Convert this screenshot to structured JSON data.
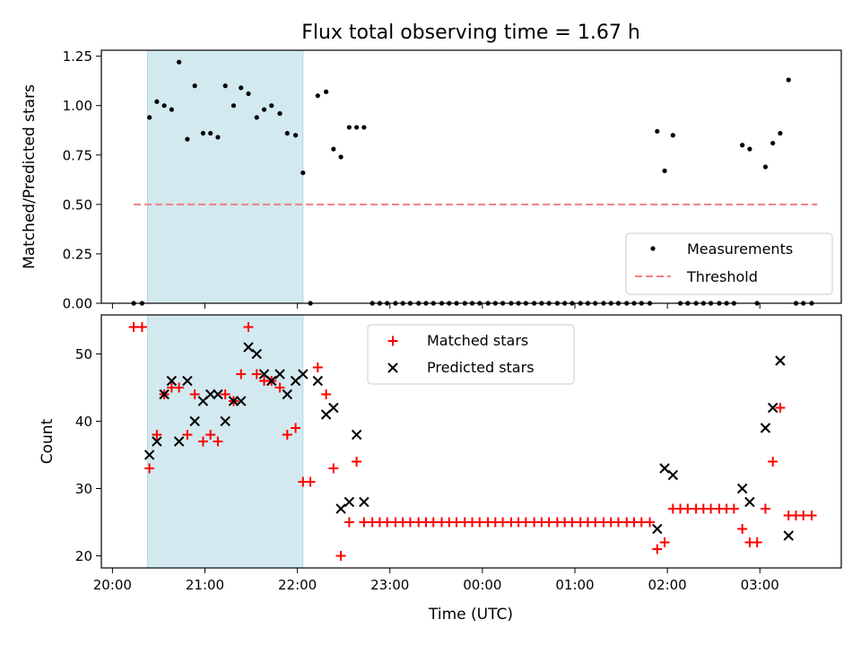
{
  "chart_data": [
    {
      "type": "scatter",
      "title": "Flux total observing time = 1.67 h",
      "ylabel": "Matched/Predicted stars",
      "xlabel": "",
      "xlim": [
        -0.12,
        7.88
      ],
      "ylim": [
        0,
        1.28
      ],
      "yticks": [
        0,
        0.25,
        0.5,
        0.75,
        1.0,
        1.25
      ],
      "ytick_labels": [
        "0.00",
        "0.25",
        "0.50",
        "0.75",
        "1.00",
        "1.25"
      ],
      "shaded_span": [
        0.38,
        2.06
      ],
      "shaded_color": "#d3e9f0",
      "threshold": {
        "name": "Threshold",
        "y": 0.5,
        "x": [
          0.23,
          7.62
        ],
        "color": "#f08080"
      },
      "legend": {
        "placement": "bottom-right",
        "entries": [
          "Measurements",
          "Threshold"
        ]
      },
      "series": [
        {
          "name": "Measurements",
          "color": "#000000",
          "points": [
            [
              0.23,
              0
            ],
            [
              0.32,
              0
            ],
            [
              0.4,
              0.94
            ],
            [
              0.48,
              1.02
            ],
            [
              0.56,
              1.0
            ],
            [
              0.64,
              0.98
            ],
            [
              0.72,
              1.22
            ],
            [
              0.81,
              0.83
            ],
            [
              0.89,
              1.1
            ],
            [
              0.98,
              0.86
            ],
            [
              1.06,
              0.86
            ],
            [
              1.14,
              0.84
            ],
            [
              1.22,
              1.1
            ],
            [
              1.31,
              1.0
            ],
            [
              1.39,
              1.09
            ],
            [
              1.47,
              1.06
            ],
            [
              1.56,
              0.94
            ],
            [
              1.64,
              0.98
            ],
            [
              1.72,
              1.0
            ],
            [
              1.81,
              0.96
            ],
            [
              1.89,
              0.86
            ],
            [
              1.98,
              0.85
            ],
            [
              2.06,
              0.66
            ],
            [
              2.14,
              0
            ],
            [
              2.22,
              1.05
            ],
            [
              2.31,
              1.07
            ],
            [
              2.39,
              0.78
            ],
            [
              2.47,
              0.74
            ],
            [
              2.56,
              0.89
            ],
            [
              2.64,
              0.89
            ],
            [
              2.72,
              0.89
            ],
            [
              2.81,
              0
            ],
            [
              2.89,
              0
            ],
            [
              2.97,
              0
            ],
            [
              3.06,
              0
            ],
            [
              3.14,
              0
            ],
            [
              3.22,
              0
            ],
            [
              3.31,
              0
            ],
            [
              3.39,
              0
            ],
            [
              3.47,
              0
            ],
            [
              3.56,
              0
            ],
            [
              3.64,
              0
            ],
            [
              3.72,
              0
            ],
            [
              3.81,
              0
            ],
            [
              3.89,
              0
            ],
            [
              3.97,
              0
            ],
            [
              4.06,
              0
            ],
            [
              4.14,
              0
            ],
            [
              4.22,
              0
            ],
            [
              4.31,
              0
            ],
            [
              4.39,
              0
            ],
            [
              4.47,
              0
            ],
            [
              4.56,
              0
            ],
            [
              4.64,
              0
            ],
            [
              4.72,
              0
            ],
            [
              4.81,
              0
            ],
            [
              4.89,
              0
            ],
            [
              4.97,
              0
            ],
            [
              5.06,
              0
            ],
            [
              5.14,
              0
            ],
            [
              5.22,
              0
            ],
            [
              5.31,
              0
            ],
            [
              5.39,
              0
            ],
            [
              5.47,
              0
            ],
            [
              5.56,
              0
            ],
            [
              5.64,
              0
            ],
            [
              5.72,
              0
            ],
            [
              5.81,
              0
            ],
            [
              5.89,
              0.87
            ],
            [
              5.97,
              0.67
            ],
            [
              6.06,
              0.85
            ],
            [
              6.14,
              0
            ],
            [
              6.22,
              0
            ],
            [
              6.31,
              0
            ],
            [
              6.39,
              0
            ],
            [
              6.47,
              0
            ],
            [
              6.56,
              0
            ],
            [
              6.64,
              0
            ],
            [
              6.72,
              0
            ],
            [
              6.81,
              0.8
            ],
            [
              6.89,
              0.78
            ],
            [
              6.97,
              0
            ],
            [
              7.06,
              0.69
            ],
            [
              7.14,
              0.81
            ],
            [
              7.22,
              0.86
            ],
            [
              7.31,
              1.13
            ],
            [
              7.39,
              0
            ],
            [
              7.47,
              0
            ],
            [
              7.56,
              0
            ]
          ]
        }
      ]
    },
    {
      "type": "scatter",
      "title": "",
      "ylabel": "Count",
      "xlabel": "Time (UTC)",
      "xlim": [
        -0.12,
        7.88
      ],
      "ylim": [
        18.2,
        55.8
      ],
      "yticks": [
        20,
        30,
        40,
        50
      ],
      "ytick_labels": [
        "20",
        "30",
        "40",
        "50"
      ],
      "xticks": [
        0,
        1,
        2,
        3,
        4,
        5,
        6,
        7
      ],
      "xtick_labels": [
        "20:00",
        "21:00",
        "22:00",
        "23:00",
        "00:00",
        "01:00",
        "02:00",
        "03:00"
      ],
      "shaded_span": [
        0.38,
        2.06
      ],
      "shaded_color": "#d3e9f0",
      "legend": {
        "placement": "top-center",
        "entries": [
          "Matched stars",
          "Predicted stars"
        ]
      },
      "series": [
        {
          "name": "Matched stars",
          "marker": "+",
          "color": "#ff0000",
          "points": [
            [
              0.23,
              54
            ],
            [
              0.32,
              54
            ],
            [
              0.4,
              33
            ],
            [
              0.48,
              38
            ],
            [
              0.56,
              44
            ],
            [
              0.64,
              45
            ],
            [
              0.72,
              45
            ],
            [
              0.81,
              38
            ],
            [
              0.89,
              44
            ],
            [
              0.98,
              37
            ],
            [
              1.06,
              38
            ],
            [
              1.14,
              37
            ],
            [
              1.22,
              44
            ],
            [
              1.31,
              43
            ],
            [
              1.39,
              47
            ],
            [
              1.47,
              54
            ],
            [
              1.56,
              47
            ],
            [
              1.64,
              46
            ],
            [
              1.72,
              46
            ],
            [
              1.81,
              45
            ],
            [
              1.89,
              38
            ],
            [
              1.98,
              39
            ],
            [
              2.06,
              31
            ],
            [
              2.14,
              31
            ],
            [
              2.22,
              48
            ],
            [
              2.31,
              44
            ],
            [
              2.39,
              33
            ],
            [
              2.47,
              20
            ],
            [
              2.56,
              25
            ],
            [
              2.64,
              34
            ],
            [
              2.72,
              25
            ],
            [
              2.81,
              25
            ],
            [
              2.89,
              25
            ],
            [
              2.97,
              25
            ],
            [
              3.06,
              25
            ],
            [
              3.14,
              25
            ],
            [
              3.22,
              25
            ],
            [
              3.31,
              25
            ],
            [
              3.39,
              25
            ],
            [
              3.47,
              25
            ],
            [
              3.56,
              25
            ],
            [
              3.64,
              25
            ],
            [
              3.72,
              25
            ],
            [
              3.81,
              25
            ],
            [
              3.89,
              25
            ],
            [
              3.97,
              25
            ],
            [
              4.06,
              25
            ],
            [
              4.14,
              25
            ],
            [
              4.22,
              25
            ],
            [
              4.31,
              25
            ],
            [
              4.39,
              25
            ],
            [
              4.47,
              25
            ],
            [
              4.56,
              25
            ],
            [
              4.64,
              25
            ],
            [
              4.72,
              25
            ],
            [
              4.81,
              25
            ],
            [
              4.89,
              25
            ],
            [
              4.97,
              25
            ],
            [
              5.06,
              25
            ],
            [
              5.14,
              25
            ],
            [
              5.22,
              25
            ],
            [
              5.31,
              25
            ],
            [
              5.39,
              25
            ],
            [
              5.47,
              25
            ],
            [
              5.56,
              25
            ],
            [
              5.64,
              25
            ],
            [
              5.72,
              25
            ],
            [
              5.81,
              25
            ],
            [
              5.89,
              21
            ],
            [
              5.97,
              22
            ],
            [
              6.06,
              27
            ],
            [
              6.14,
              27
            ],
            [
              6.22,
              27
            ],
            [
              6.31,
              27
            ],
            [
              6.39,
              27
            ],
            [
              6.47,
              27
            ],
            [
              6.56,
              27
            ],
            [
              6.64,
              27
            ],
            [
              6.72,
              27
            ],
            [
              6.81,
              24
            ],
            [
              6.89,
              22
            ],
            [
              6.97,
              22
            ],
            [
              7.06,
              27
            ],
            [
              7.14,
              34
            ],
            [
              7.22,
              42
            ],
            [
              7.31,
              26
            ],
            [
              7.39,
              26
            ],
            [
              7.47,
              26
            ],
            [
              7.56,
              26
            ]
          ]
        },
        {
          "name": "Predicted stars",
          "marker": "x",
          "color": "#000000",
          "points": [
            [
              0.4,
              35
            ],
            [
              0.48,
              37
            ],
            [
              0.56,
              44
            ],
            [
              0.64,
              46
            ],
            [
              0.72,
              37
            ],
            [
              0.81,
              46
            ],
            [
              0.89,
              40
            ],
            [
              0.98,
              43
            ],
            [
              1.06,
              44
            ],
            [
              1.14,
              44
            ],
            [
              1.22,
              40
            ],
            [
              1.31,
              43
            ],
            [
              1.39,
              43
            ],
            [
              1.47,
              51
            ],
            [
              1.56,
              50
            ],
            [
              1.64,
              47
            ],
            [
              1.72,
              46
            ],
            [
              1.81,
              47
            ],
            [
              1.89,
              44
            ],
            [
              1.98,
              46
            ],
            [
              2.06,
              47
            ],
            [
              2.22,
              46
            ],
            [
              2.31,
              41
            ],
            [
              2.39,
              42
            ],
            [
              2.47,
              27
            ],
            [
              2.56,
              28
            ],
            [
              2.64,
              38
            ],
            [
              2.72,
              28
            ],
            [
              5.89,
              24
            ],
            [
              5.97,
              33
            ],
            [
              6.06,
              32
            ],
            [
              6.81,
              30
            ],
            [
              6.89,
              28
            ],
            [
              7.06,
              39
            ],
            [
              7.14,
              42
            ],
            [
              7.22,
              49
            ],
            [
              7.31,
              23
            ]
          ]
        }
      ]
    }
  ]
}
